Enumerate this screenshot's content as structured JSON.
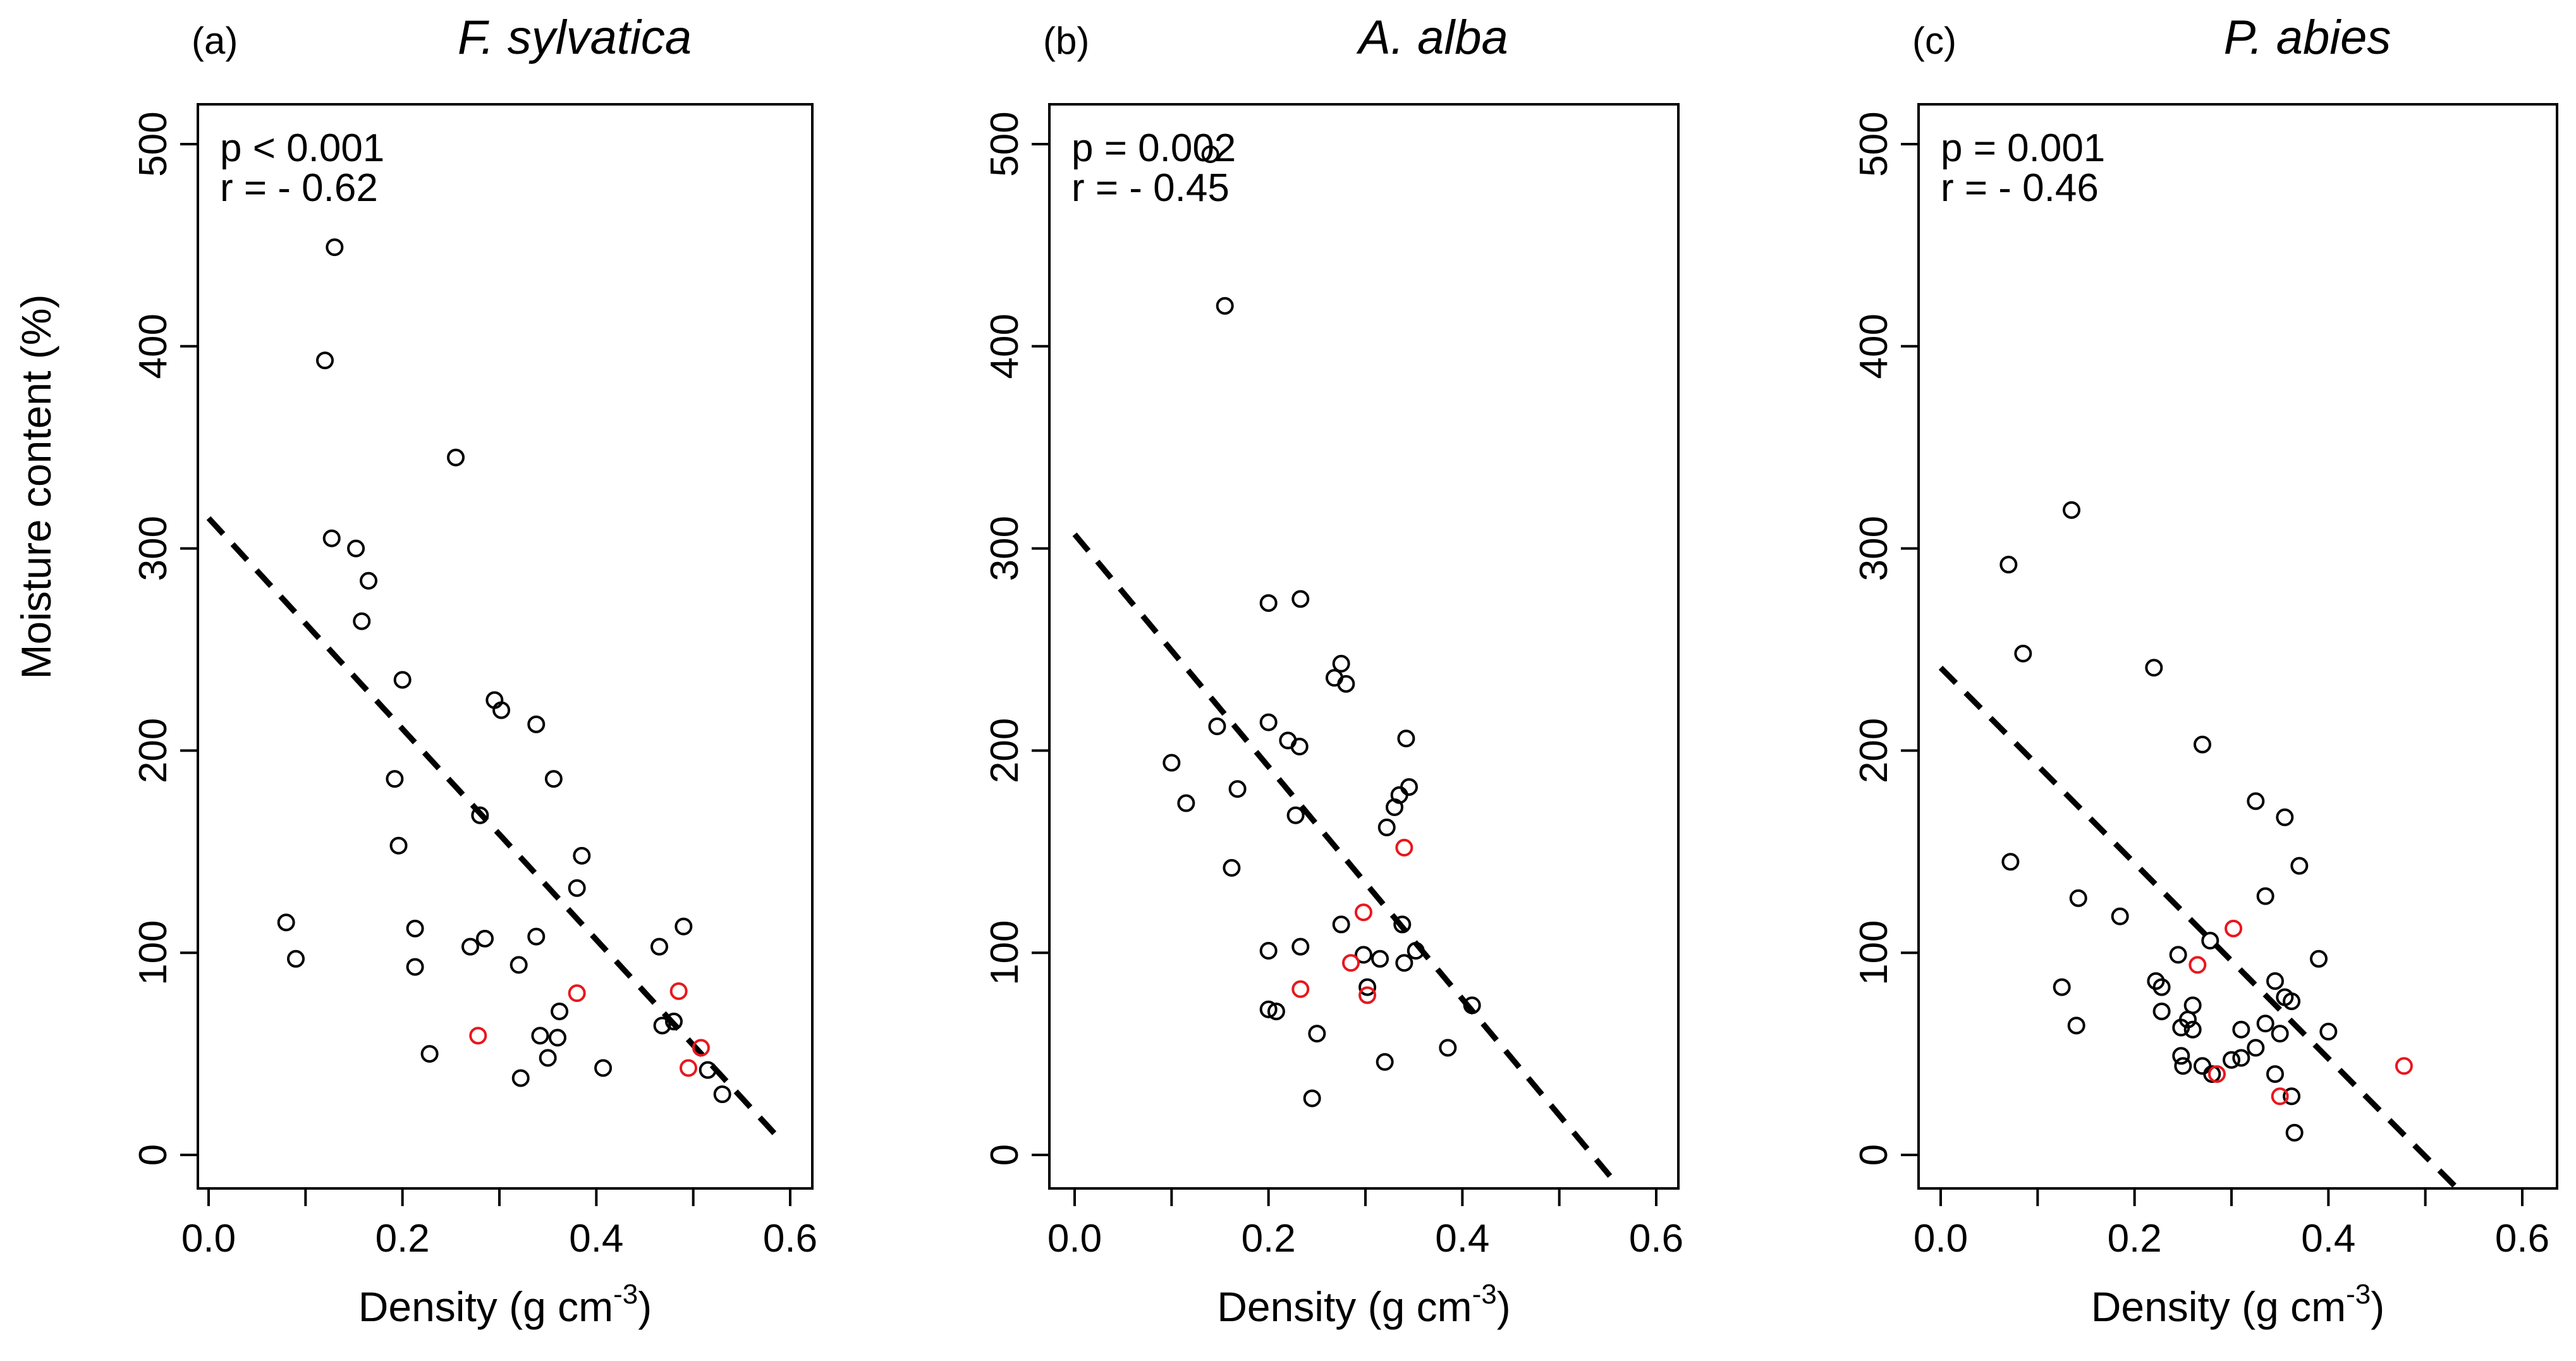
{
  "figure": {
    "y_axis_label": "Moisture content (%)",
    "x_axis_label_main": "Density (g cm",
    "x_axis_label_exponent": "-3",
    "x_axis_label_close": ")",
    "colors": {
      "regular_point": "#000000",
      "highlight_point": "#e8171d",
      "regression_line": "#000000"
    }
  },
  "chart_data": [
    {
      "type": "scatter",
      "panel_letter": "(a)",
      "title": "F. sylvatica",
      "xlabel": "Density (g cm-3)",
      "ylabel": "Moisture content (%)",
      "xlim": [
        0.0,
        0.6
      ],
      "ylim": [
        0,
        500
      ],
      "x_ticks": [
        "0.0",
        "0.2",
        "0.4",
        "0.6"
      ],
      "y_ticks": [
        "0",
        "100",
        "200",
        "300",
        "400",
        "500"
      ],
      "stats": {
        "p_text": "p < 0.001",
        "r_text": "r = - 0.62"
      },
      "regression_line": {
        "x": [
          0.0,
          0.585
        ],
        "y": [
          315,
          10
        ],
        "style": "dashed"
      },
      "series": [
        {
          "name": "black points",
          "color": "#000000",
          "points": [
            [
              0.08,
              115
            ],
            [
              0.09,
              97
            ],
            [
              0.12,
              393
            ],
            [
              0.13,
              449
            ],
            [
              0.127,
              305
            ],
            [
              0.152,
              300
            ],
            [
              0.165,
              284
            ],
            [
              0.158,
              264
            ],
            [
              0.2,
              235
            ],
            [
              0.192,
              186
            ],
            [
              0.196,
              153
            ],
            [
              0.213,
              112
            ],
            [
              0.213,
              93
            ],
            [
              0.228,
              50
            ],
            [
              0.255,
              345
            ],
            [
              0.28,
              168
            ],
            [
              0.285,
              107
            ],
            [
              0.27,
              103
            ],
            [
              0.295,
              225
            ],
            [
              0.302,
              220
            ],
            [
              0.338,
              213
            ],
            [
              0.356,
              186
            ],
            [
              0.385,
              148
            ],
            [
              0.38,
              132
            ],
            [
              0.338,
              108
            ],
            [
              0.32,
              94
            ],
            [
              0.362,
              71
            ],
            [
              0.342,
              59
            ],
            [
              0.36,
              58
            ],
            [
              0.35,
              48
            ],
            [
              0.322,
              38
            ],
            [
              0.407,
              43
            ],
            [
              0.465,
              103
            ],
            [
              0.49,
              113
            ],
            [
              0.468,
              64
            ],
            [
              0.48,
              66
            ],
            [
              0.515,
              42
            ],
            [
              0.53,
              30
            ]
          ]
        },
        {
          "name": "red points",
          "color": "#e8171d",
          "points": [
            [
              0.278,
              59
            ],
            [
              0.38,
              80
            ],
            [
              0.485,
              81
            ],
            [
              0.508,
              53
            ],
            [
              0.495,
              43
            ]
          ]
        }
      ]
    },
    {
      "type": "scatter",
      "panel_letter": "(b)",
      "title": "A. alba",
      "xlabel": "Density (g cm-3)",
      "ylabel": "Moisture content (%)",
      "xlim": [
        0.0,
        0.6
      ],
      "ylim": [
        0,
        500
      ],
      "x_ticks": [
        "0.0",
        "0.2",
        "0.4",
        "0.6"
      ],
      "y_ticks": [
        "0",
        "100",
        "200",
        "300",
        "400",
        "500"
      ],
      "stats": {
        "p_text": "p = 0.002",
        "r_text": "r = - 0.45"
      },
      "regression_line": {
        "x": [
          0.0,
          0.555
        ],
        "y": [
          307,
          -12
        ],
        "style": "dashed"
      },
      "series": [
        {
          "name": "black points",
          "color": "#000000",
          "points": [
            [
              0.14,
              495
            ],
            [
              0.155,
              420
            ],
            [
              0.2,
              273
            ],
            [
              0.233,
              275
            ],
            [
              0.275,
              243
            ],
            [
              0.268,
              236
            ],
            [
              0.28,
              233
            ],
            [
              0.1,
              194
            ],
            [
              0.115,
              174
            ],
            [
              0.147,
              212
            ],
            [
              0.2,
              214
            ],
            [
              0.22,
              205
            ],
            [
              0.232,
              202
            ],
            [
              0.168,
              181
            ],
            [
              0.162,
              142
            ],
            [
              0.228,
              168
            ],
            [
              0.342,
              206
            ],
            [
              0.345,
              182
            ],
            [
              0.335,
              178
            ],
            [
              0.33,
              172
            ],
            [
              0.322,
              162
            ],
            [
              0.2,
              101
            ],
            [
              0.233,
              103
            ],
            [
              0.275,
              114
            ],
            [
              0.338,
              114
            ],
            [
              0.298,
              99
            ],
            [
              0.315,
              97
            ],
            [
              0.352,
              101
            ],
            [
              0.34,
              95
            ],
            [
              0.302,
              83
            ],
            [
              0.2,
              72
            ],
            [
              0.208,
              71
            ],
            [
              0.25,
              60
            ],
            [
              0.32,
              46
            ],
            [
              0.41,
              74
            ],
            [
              0.385,
              53
            ],
            [
              0.245,
              28
            ]
          ]
        },
        {
          "name": "red points",
          "color": "#e8171d",
          "points": [
            [
              0.34,
              152
            ],
            [
              0.298,
              120
            ],
            [
              0.285,
              95
            ],
            [
              0.233,
              82
            ],
            [
              0.302,
              79
            ]
          ]
        }
      ]
    },
    {
      "type": "scatter",
      "panel_letter": "(c)",
      "title": "P. abies",
      "xlabel": "Density (g cm-3)",
      "ylabel": "Moisture content (%)",
      "xlim": [
        0.0,
        0.6
      ],
      "ylim": [
        0,
        500
      ],
      "x_ticks": [
        "0.0",
        "0.2",
        "0.4",
        "0.6"
      ],
      "y_ticks": [
        "0",
        "100",
        "200",
        "300",
        "400",
        "500"
      ],
      "stats": {
        "p_text": "p = 0.001",
        "r_text": "r = - 0.46"
      },
      "regression_line": {
        "x": [
          0.0,
          0.54
        ],
        "y": [
          241,
          -20
        ],
        "style": "dashed"
      },
      "series": [
        {
          "name": "black points",
          "color": "#000000",
          "points": [
            [
              0.135,
              319
            ],
            [
              0.07,
              292
            ],
            [
              0.085,
              248
            ],
            [
              0.22,
              241
            ],
            [
              0.27,
              203
            ],
            [
              0.072,
              145
            ],
            [
              0.142,
              127
            ],
            [
              0.185,
              118
            ],
            [
              0.125,
              83
            ],
            [
              0.14,
              64
            ],
            [
              0.325,
              175
            ],
            [
              0.355,
              167
            ],
            [
              0.37,
              143
            ],
            [
              0.335,
              128
            ],
            [
              0.278,
              106
            ],
            [
              0.245,
              99
            ],
            [
              0.222,
              86
            ],
            [
              0.228,
              83
            ],
            [
              0.26,
              74
            ],
            [
              0.228,
              71
            ],
            [
              0.255,
              67
            ],
            [
              0.248,
              63
            ],
            [
              0.26,
              62
            ],
            [
              0.345,
              86
            ],
            [
              0.355,
              78
            ],
            [
              0.362,
              76
            ],
            [
              0.39,
              97
            ],
            [
              0.4,
              61
            ],
            [
              0.31,
              62
            ],
            [
              0.335,
              65
            ],
            [
              0.325,
              53
            ],
            [
              0.248,
              49
            ],
            [
              0.3,
              47
            ],
            [
              0.31,
              48
            ],
            [
              0.27,
              44
            ],
            [
              0.25,
              44
            ],
            [
              0.28,
              40
            ],
            [
              0.345,
              40
            ],
            [
              0.362,
              29
            ],
            [
              0.365,
              11
            ],
            [
              0.35,
              60
            ]
          ]
        },
        {
          "name": "red points",
          "color": "#e8171d",
          "points": [
            [
              0.302,
              112
            ],
            [
              0.265,
              94
            ],
            [
              0.285,
              40
            ],
            [
              0.35,
              29
            ],
            [
              0.478,
              44
            ]
          ]
        }
      ]
    }
  ]
}
